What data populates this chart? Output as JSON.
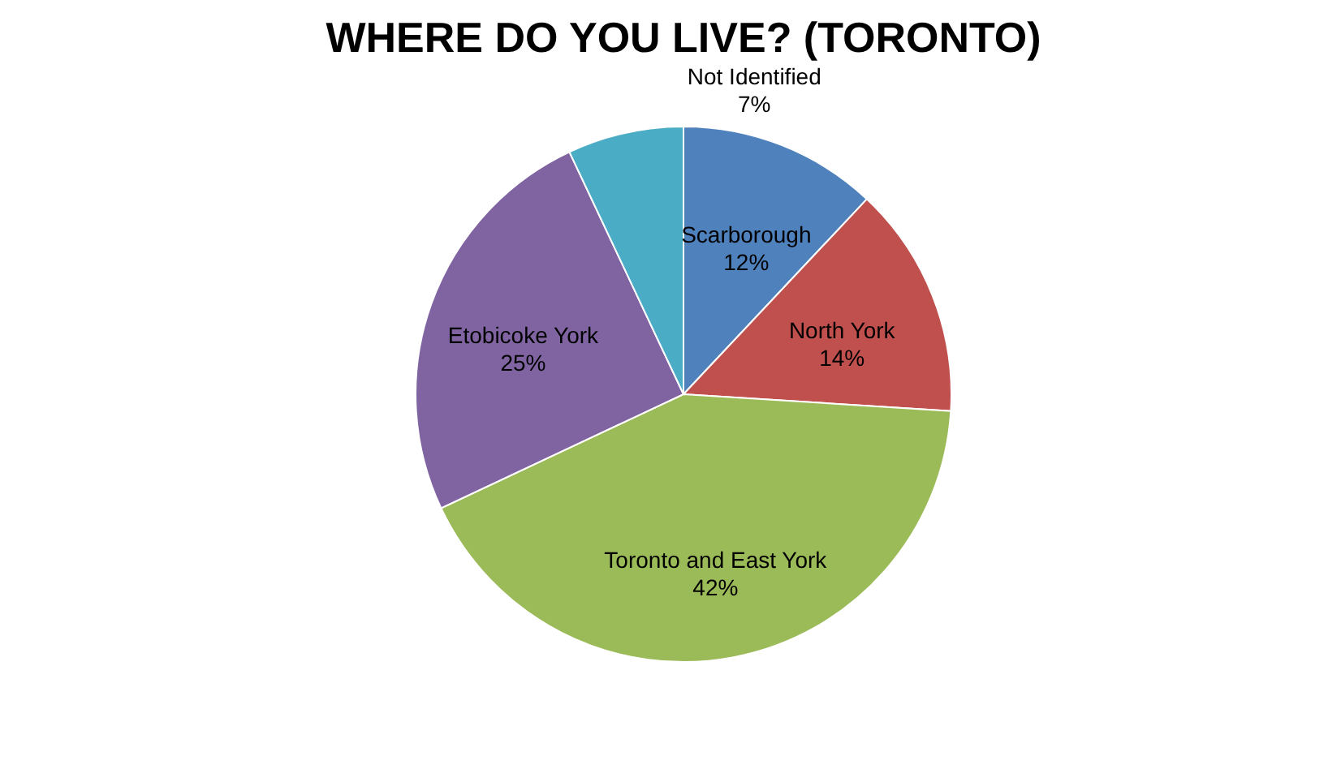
{
  "chart_data": {
    "type": "pie",
    "title": "WHERE DO YOU LIVE? (TORONTO)",
    "categories": [
      "Scarborough",
      "North York",
      "Toronto and East York",
      "Etobicoke York",
      "Not Identified"
    ],
    "values": [
      12,
      14,
      42,
      25,
      7
    ],
    "colors": [
      "#4f81bd",
      "#c0504d",
      "#9bbb59",
      "#8064a2",
      "#4bacc6"
    ],
    "value_labels": [
      "12%",
      "14%",
      "42%",
      "25%",
      "7%"
    ],
    "legend": false
  }
}
